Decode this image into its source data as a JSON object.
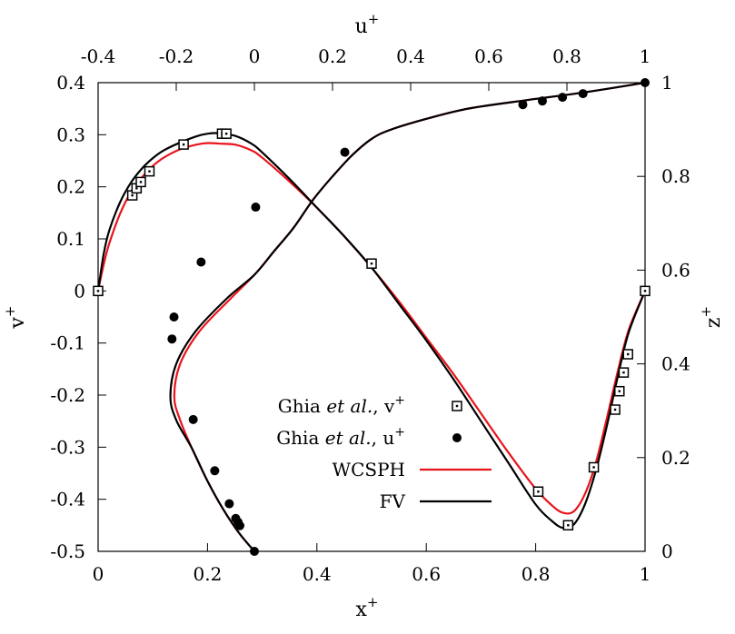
{
  "chart_data": {
    "type": "line",
    "axes": {
      "bottom": {
        "label": "x",
        "sup": "+",
        "range": [
          0,
          1
        ],
        "ticks": [
          "0",
          "0.2",
          "0.4",
          "0.6",
          "0.8",
          "1"
        ]
      },
      "left": {
        "label": "v",
        "sup": "+",
        "range": [
          -0.5,
          0.4
        ],
        "ticks": [
          "-0.5",
          "-0.4",
          "-0.3",
          "-0.2",
          "-0.1",
          "0",
          "0.1",
          "0.2",
          "0.3",
          "0.4"
        ]
      },
      "top": {
        "label": "u",
        "sup": "+",
        "range": [
          -0.4,
          1
        ],
        "ticks": [
          "-0.4",
          "-0.2",
          "0",
          "0.2",
          "0.4",
          "0.6",
          "0.8",
          "1"
        ]
      },
      "right": {
        "label": "z",
        "sup": "+",
        "range": [
          0,
          1
        ],
        "ticks": [
          "0",
          "0.2",
          "0.4",
          "0.6",
          "0.8",
          "1"
        ]
      }
    },
    "legend": {
      "placement": "lower-center",
      "entries": [
        {
          "pre": "Ghia ",
          "italic": "et al.",
          "post": ", v",
          "sup": "+",
          "marker": "square"
        },
        {
          "pre": "Ghia ",
          "italic": "et al.",
          "post": ", u",
          "sup": "+",
          "marker": "dot"
        },
        {
          "pre": "WCSPH",
          "italic": "",
          "post": "",
          "sup": "",
          "marker": "line-red"
        },
        {
          "pre": "FV",
          "italic": "",
          "post": "",
          "sup": "",
          "marker": "line-black"
        }
      ]
    },
    "series": [
      {
        "name": "Ghia et al., v+",
        "kind": "markers-square",
        "axes": "x-v",
        "x": [
          0.0,
          0.0625,
          0.0703,
          0.0781,
          0.0938,
          0.1563,
          0.2266,
          0.2344,
          0.5,
          0.8047,
          0.8594,
          0.9063,
          0.9453,
          0.9531,
          0.9609,
          0.9688,
          1.0
        ],
        "y": [
          0.0,
          0.1836,
          0.1971,
          0.2092,
          0.2297,
          0.2812,
          0.302,
          0.302,
          0.0526,
          -0.3853,
          -0.4499,
          -0.3386,
          -0.2279,
          -0.1925,
          -0.1566,
          -0.1215,
          0.0
        ]
      },
      {
        "name": "Ghia et al., u+",
        "kind": "markers-dot",
        "axes": "u-z",
        "x": [
          0.0,
          -0.0372,
          -0.0419,
          -0.0478,
          -0.0643,
          -0.1015,
          -0.1566,
          -0.2109,
          -0.2058,
          -0.1364,
          0.0033,
          0.2315,
          0.6872,
          0.7372,
          0.7887,
          0.8412,
          1.0
        ],
        "y": [
          0.0,
          0.0547,
          0.0625,
          0.0703,
          0.1016,
          0.1719,
          0.2813,
          0.4531,
          0.5,
          0.6172,
          0.7344,
          0.8516,
          0.9531,
          0.9609,
          0.9688,
          0.9766,
          1.0
        ]
      },
      {
        "name": "WCSPH",
        "kind": "line",
        "color": "#e8141c",
        "axes": "x-v",
        "x": [
          0.0,
          0.01,
          0.02,
          0.04,
          0.06,
          0.08,
          0.1,
          0.12,
          0.15,
          0.18,
          0.2,
          0.22,
          0.25,
          0.28,
          0.3,
          0.35,
          0.4,
          0.45,
          0.5,
          0.55,
          0.6,
          0.65,
          0.7,
          0.75,
          0.8,
          0.83,
          0.85,
          0.87,
          0.89,
          0.91,
          0.93,
          0.95,
          0.97,
          1.0
        ],
        "y": [
          0.0,
          0.05,
          0.09,
          0.148,
          0.19,
          0.218,
          0.24,
          0.256,
          0.272,
          0.281,
          0.284,
          0.283,
          0.281,
          0.27,
          0.256,
          0.21,
          0.16,
          0.105,
          0.045,
          -0.02,
          -0.09,
          -0.16,
          -0.235,
          -0.31,
          -0.38,
          -0.412,
          -0.426,
          -0.423,
          -0.39,
          -0.33,
          -0.245,
          -0.155,
          -0.075,
          0.0
        ]
      },
      {
        "name": "WCSPH",
        "kind": "line",
        "color": "#e8141c",
        "axes": "u-z",
        "x": [
          0.0,
          -0.04,
          -0.08,
          -0.12,
          -0.16,
          -0.19,
          -0.205,
          -0.19,
          -0.14,
          -0.06,
          0.0,
          0.05,
          0.1,
          0.15,
          0.2,
          0.25,
          0.3,
          0.35,
          0.45,
          0.55,
          0.7,
          0.85,
          1.0
        ],
        "y": [
          0.0,
          0.04,
          0.09,
          0.15,
          0.22,
          0.28,
          0.33,
          0.4,
          0.47,
          0.54,
          0.59,
          0.64,
          0.69,
          0.75,
          0.8,
          0.845,
          0.88,
          0.9,
          0.925,
          0.945,
          0.963,
          0.98,
          1.0
        ]
      },
      {
        "name": "FV",
        "kind": "line",
        "color": "#000000",
        "axes": "x-v",
        "x": [
          0.0,
          0.01,
          0.02,
          0.04,
          0.06,
          0.08,
          0.1,
          0.12,
          0.15,
          0.18,
          0.2,
          0.22,
          0.25,
          0.28,
          0.3,
          0.35,
          0.4,
          0.45,
          0.5,
          0.55,
          0.6,
          0.65,
          0.7,
          0.75,
          0.8,
          0.83,
          0.85,
          0.87,
          0.89,
          0.91,
          0.93,
          0.95,
          0.97,
          1.0
        ],
        "y": [
          0.0,
          0.07,
          0.115,
          0.17,
          0.208,
          0.235,
          0.255,
          0.27,
          0.285,
          0.297,
          0.302,
          0.303,
          0.298,
          0.283,
          0.266,
          0.215,
          0.16,
          0.105,
          0.045,
          -0.025,
          -0.095,
          -0.17,
          -0.25,
          -0.33,
          -0.41,
          -0.442,
          -0.455,
          -0.448,
          -0.41,
          -0.345,
          -0.26,
          -0.165,
          -0.08,
          0.0
        ]
      },
      {
        "name": "FV",
        "kind": "line",
        "color": "#000000",
        "axes": "u-z",
        "x": [
          0.0,
          -0.04,
          -0.08,
          -0.12,
          -0.16,
          -0.2,
          -0.215,
          -0.2,
          -0.15,
          -0.07,
          0.0,
          0.05,
          0.1,
          0.15,
          0.2,
          0.25,
          0.3,
          0.35,
          0.45,
          0.55,
          0.7,
          0.85,
          1.0
        ],
        "y": [
          0.0,
          0.04,
          0.09,
          0.15,
          0.22,
          0.28,
          0.33,
          0.4,
          0.47,
          0.54,
          0.59,
          0.64,
          0.69,
          0.75,
          0.8,
          0.845,
          0.88,
          0.9,
          0.925,
          0.945,
          0.963,
          0.98,
          1.0
        ]
      }
    ],
    "grid": false,
    "colors": {
      "wcsph": "#e8141c",
      "fv": "#000000",
      "markers": "#000000"
    }
  }
}
